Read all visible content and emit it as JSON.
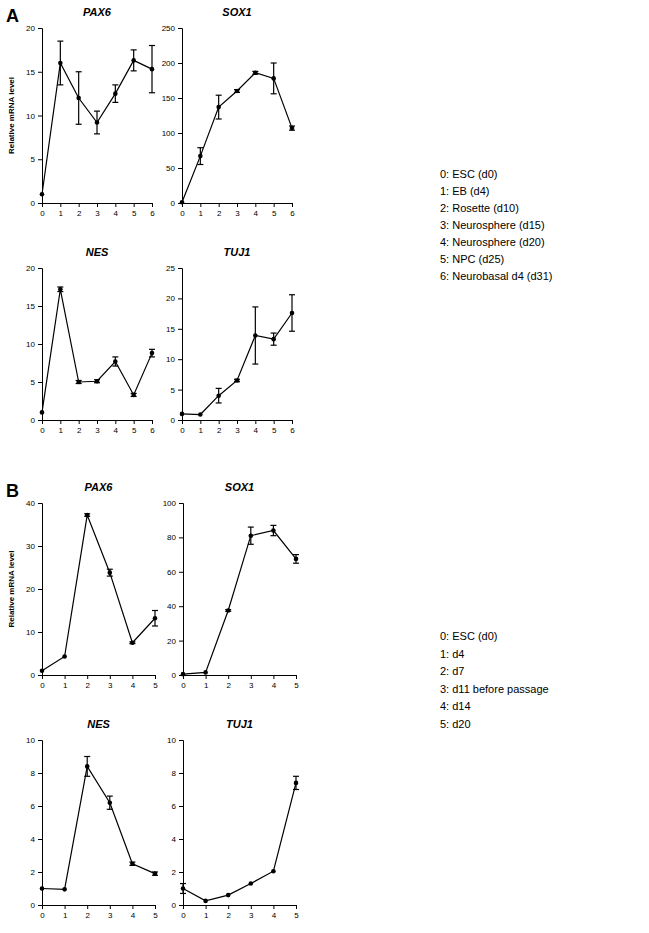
{
  "panels": [
    {
      "label": "A",
      "key": [
        "0: ESC (d0)",
        "1: EB (d4)",
        "2: Rosette (d10)",
        "3: Neurosphere (d15)",
        "4: Neurosphere (d20)",
        "5: NPC (d25)",
        "6: Neurobasal d4 (d31)"
      ]
    },
    {
      "label": "B",
      "key": [
        "0: ESC (d0)",
        "1: d4",
        "2: d7",
        "3: d11 before passage",
        "4: d14",
        "5: d20"
      ]
    }
  ],
  "chart_data": [
    {
      "type": "line",
      "title": "PAX6",
      "y_label": "Relative mRNA level",
      "marker": "circle",
      "color": "#000000",
      "x": [
        0,
        1,
        2,
        3,
        4,
        5,
        6
      ],
      "values": [
        1,
        16,
        12,
        9.2,
        12.5,
        16.3,
        15.3
      ],
      "errors": [
        0,
        2.5,
        3,
        1.3,
        1,
        1.2,
        2.7
      ],
      "xlim": [
        0,
        6
      ],
      "xticks": [
        0,
        1,
        2,
        3,
        4,
        5,
        6
      ],
      "ylim": [
        0,
        20
      ],
      "yticks": [
        0,
        5,
        10,
        15,
        20
      ]
    },
    {
      "type": "line",
      "title": "SOX1",
      "marker": "circle",
      "color": "#000000",
      "x": [
        0,
        1,
        2,
        3,
        4,
        5,
        6
      ],
      "values": [
        1,
        67,
        137,
        160,
        186,
        178,
        107
      ],
      "errors": [
        0,
        12,
        17,
        2,
        2,
        22,
        3
      ],
      "xlim": [
        0,
        6
      ],
      "xticks": [
        0,
        1,
        2,
        3,
        4,
        5,
        6
      ],
      "ylim": [
        0,
        250
      ],
      "yticks": [
        0,
        50,
        100,
        150,
        200,
        250
      ]
    },
    {
      "type": "line",
      "title": "NES",
      "marker": "circle",
      "color": "#000000",
      "x": [
        0,
        1,
        2,
        3,
        4,
        5,
        6
      ],
      "values": [
        1,
        17.2,
        5,
        5.1,
        7.7,
        3.3,
        8.8
      ],
      "errors": [
        0,
        0.3,
        0.2,
        0.2,
        0.6,
        0.2,
        0.5
      ],
      "xlim": [
        0,
        6
      ],
      "xticks": [
        0,
        1,
        2,
        3,
        4,
        5,
        6
      ],
      "ylim": [
        0,
        20
      ],
      "yticks": [
        0,
        5,
        10,
        15,
        20
      ]
    },
    {
      "type": "line",
      "title": "TUJ1",
      "marker": "circle",
      "color": "#000000",
      "x": [
        0,
        1,
        2,
        3,
        4,
        5,
        6
      ],
      "values": [
        1,
        0.9,
        4,
        6.5,
        13.9,
        13.3,
        17.6
      ],
      "errors": [
        0,
        0,
        1.2,
        0.2,
        4.7,
        1,
        3
      ],
      "xlim": [
        0,
        6
      ],
      "xticks": [
        0,
        1,
        2,
        3,
        4,
        5,
        6
      ],
      "ylim": [
        0,
        25
      ],
      "yticks": [
        0,
        5,
        10,
        15,
        20,
        25
      ]
    },
    {
      "type": "line",
      "title": "PAX6",
      "y_label": "Relative mRNA level",
      "marker": "circle",
      "color": "#000000",
      "x": [
        0,
        1,
        2,
        3,
        4,
        5
      ],
      "values": [
        1,
        4.3,
        37.2,
        23.8,
        7.5,
        13.2
      ],
      "errors": [
        0,
        0,
        0.3,
        0.8,
        0.2,
        1.8
      ],
      "xlim": [
        0,
        5
      ],
      "xticks": [
        0,
        1,
        2,
        3,
        4,
        5
      ],
      "ylim": [
        0,
        40
      ],
      "yticks": [
        0,
        10,
        20,
        30,
        40
      ]
    },
    {
      "type": "line",
      "title": "SOX1",
      "marker": "circle",
      "color": "#000000",
      "x": [
        0,
        1,
        2,
        3,
        4,
        5
      ],
      "values": [
        0.5,
        1.5,
        37.5,
        81,
        84,
        67.5
      ],
      "errors": [
        0,
        0,
        0.5,
        5,
        3,
        2.5
      ],
      "xlim": [
        0,
        5
      ],
      "xticks": [
        0,
        1,
        2,
        3,
        4,
        5
      ],
      "ylim": [
        0,
        100
      ],
      "yticks": [
        0,
        20,
        40,
        60,
        80,
        100
      ]
    },
    {
      "type": "line",
      "title": "NES",
      "marker": "circle",
      "color": "#000000",
      "x": [
        0,
        1,
        2,
        3,
        4,
        5
      ],
      "values": [
        1,
        0.95,
        8.4,
        6.2,
        2.5,
        1.9
      ],
      "errors": [
        0,
        0,
        0.6,
        0.4,
        0.1,
        0.1
      ],
      "xlim": [
        0,
        5
      ],
      "xticks": [
        0,
        1,
        2,
        3,
        4,
        5
      ],
      "ylim": [
        0,
        10
      ],
      "yticks": [
        0,
        2,
        4,
        6,
        8,
        10
      ]
    },
    {
      "type": "line",
      "title": "TUJ1",
      "marker": "circle",
      "color": "#000000",
      "x": [
        0,
        1,
        2,
        3,
        4,
        5
      ],
      "values": [
        1,
        0.25,
        0.6,
        1.3,
        2.05,
        7.4
      ],
      "errors": [
        0.3,
        0,
        0,
        0,
        0,
        0.4
      ],
      "xlim": [
        0,
        5
      ],
      "xticks": [
        0,
        1,
        2,
        3,
        4,
        5
      ],
      "ylim": [
        0,
        10
      ],
      "yticks": [
        0,
        2,
        4,
        6,
        8,
        10
      ]
    }
  ]
}
